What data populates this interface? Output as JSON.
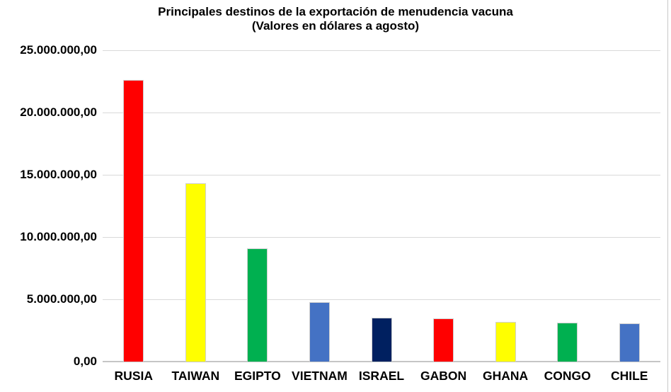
{
  "chart_data": {
    "type": "bar",
    "title": "Principales destinos de la exportación de menudencia vacuna",
    "subtitle": "(Valores en dólares a agosto)",
    "categories": [
      "RUSIA",
      "TAIWAN",
      "EGIPTO",
      "VIETNAM",
      "ISRAEL",
      "GABON",
      "GHANA",
      "CONGO",
      "CHILE"
    ],
    "values": [
      22600000,
      14300000,
      9100000,
      4750000,
      3550000,
      3450000,
      3200000,
      3100000,
      3050000
    ],
    "bar_colors": [
      "#FF0000",
      "#FFFF00",
      "#00B050",
      "#4472C4",
      "#002060",
      "#FF0000",
      "#FFFF00",
      "#00B050",
      "#4472C4"
    ],
    "y_ticks": [
      {
        "value": 25000000,
        "label": "25.000.000,00"
      },
      {
        "value": 20000000,
        "label": "20.000.000,00"
      },
      {
        "value": 15000000,
        "label": "15.000.000,00"
      },
      {
        "value": 10000000,
        "label": "10.000.000,00"
      },
      {
        "value": 5000000,
        "label": "5.000.000,00"
      },
      {
        "value": 0,
        "label": "0,00"
      }
    ],
    "ylim": [
      0,
      25000000
    ],
    "xlabel": "",
    "ylabel": "",
    "grid": "horizontal",
    "legend": "none",
    "background_color": "#ffffff",
    "gridline_color": "#d9d9d9",
    "axis_line_color": "#c6c6c6",
    "text_color": "#000000"
  }
}
